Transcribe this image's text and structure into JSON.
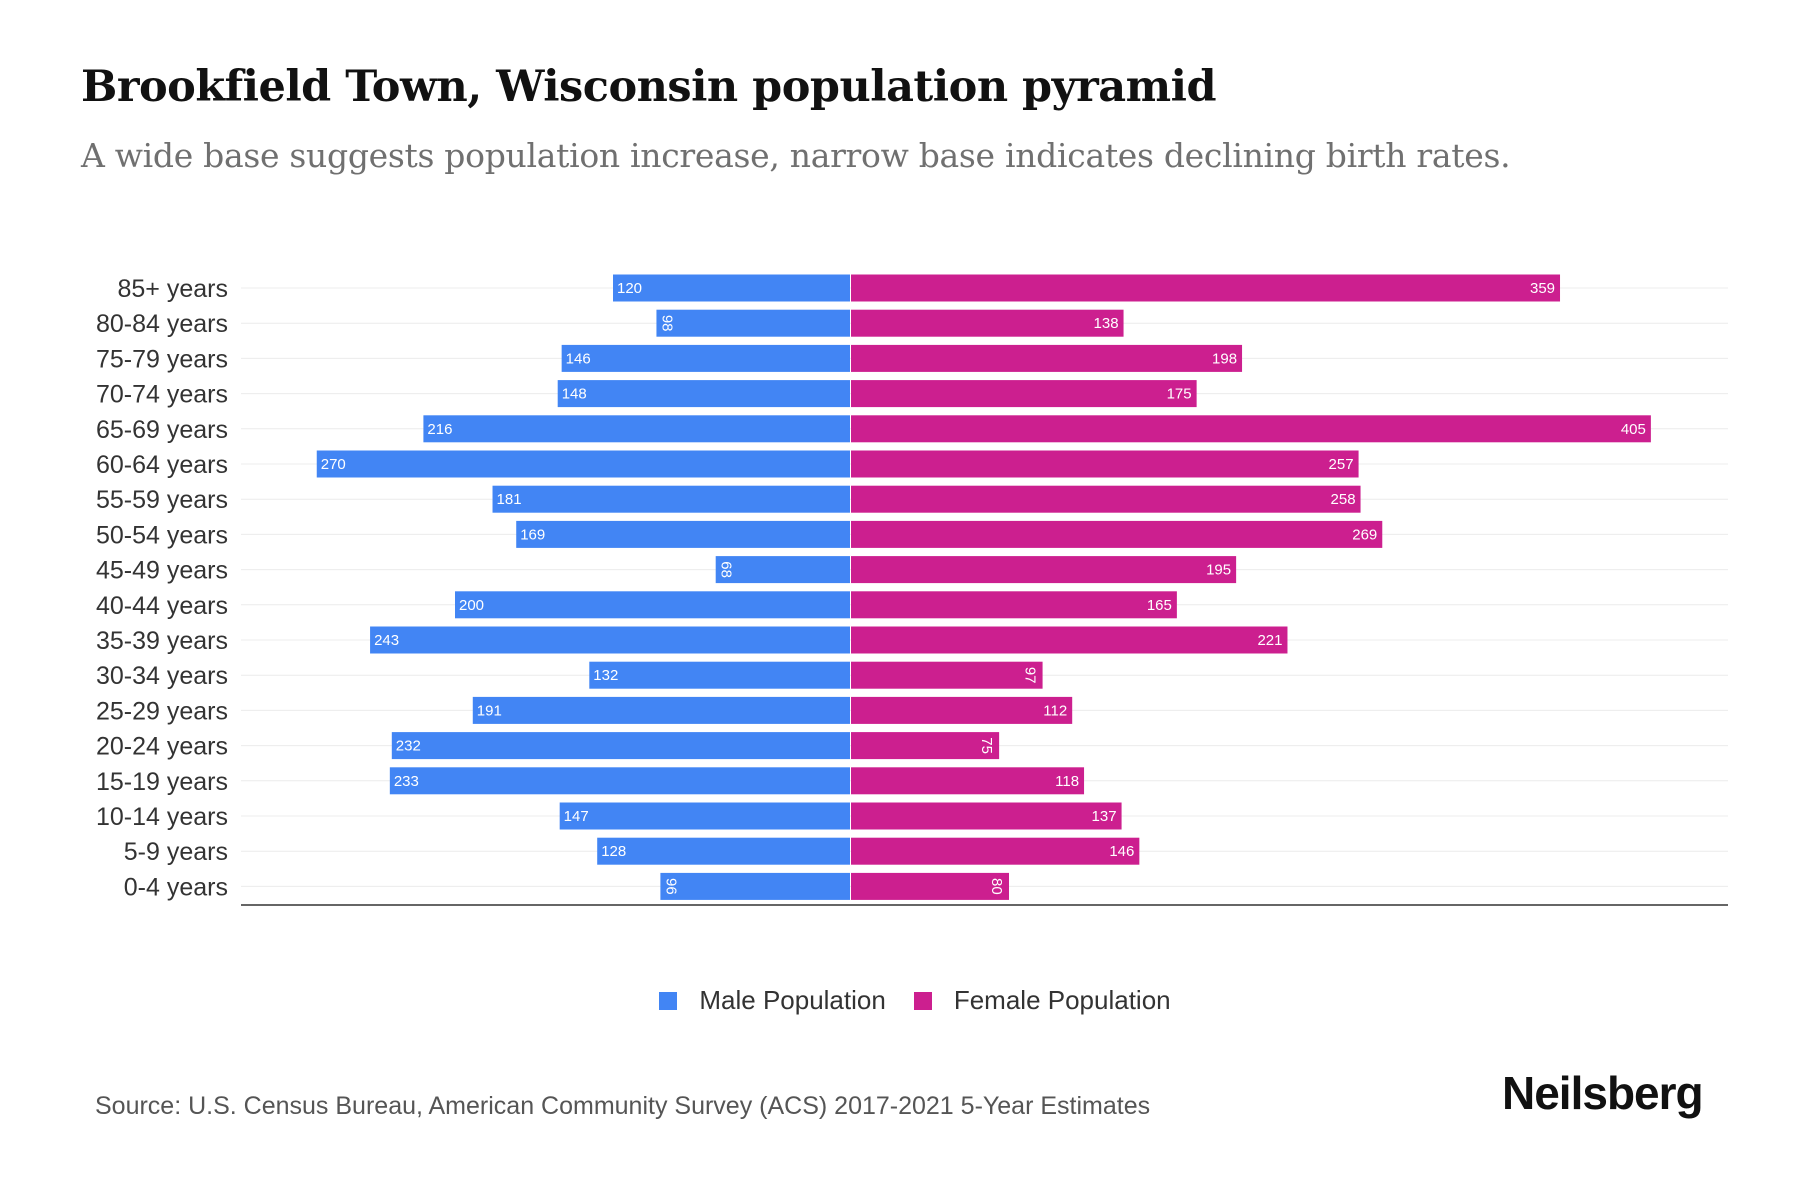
{
  "header": {
    "title": "Brookfield Town, Wisconsin population pyramid",
    "subtitle": "A wide base suggests population increase, narrow base indicates declining birth rates."
  },
  "colors": {
    "male": "#4285f4",
    "female": "#cc1f8f"
  },
  "legend": {
    "male_label": "Male Population",
    "female_label": "Female Population"
  },
  "footer": {
    "source": "Source: U.S. Census Bureau, American Community Survey (ACS) 2017-2021 5-Year Estimates",
    "brand": "Neilsberg"
  },
  "chart_data": {
    "type": "bar",
    "orientation": "horizontal-pyramid",
    "title": "Brookfield Town, Wisconsin population pyramid",
    "subtitle": "A wide base suggests population increase, narrow base indicates declining birth rates.",
    "categories": [
      "85+ years",
      "80-84 years",
      "75-79 years",
      "70-74 years",
      "65-69 years",
      "60-64 years",
      "55-59 years",
      "50-54 years",
      "45-49 years",
      "40-44 years",
      "35-39 years",
      "30-34 years",
      "25-29 years",
      "20-24 years",
      "15-19 years",
      "10-14 years",
      "5-9 years",
      "0-4 years"
    ],
    "series": [
      {
        "name": "Male Population",
        "values": [
          120,
          98,
          146,
          148,
          216,
          270,
          181,
          169,
          68,
          200,
          243,
          132,
          191,
          232,
          233,
          147,
          128,
          96
        ]
      },
      {
        "name": "Female Population",
        "values": [
          359,
          138,
          198,
          175,
          405,
          257,
          258,
          269,
          195,
          165,
          221,
          97,
          112,
          75,
          118,
          137,
          146,
          80
        ]
      }
    ],
    "xlabel": "",
    "ylabel": "",
    "xlim": [
      -444,
      444
    ],
    "grid": true,
    "legend_position": "bottom-center"
  }
}
